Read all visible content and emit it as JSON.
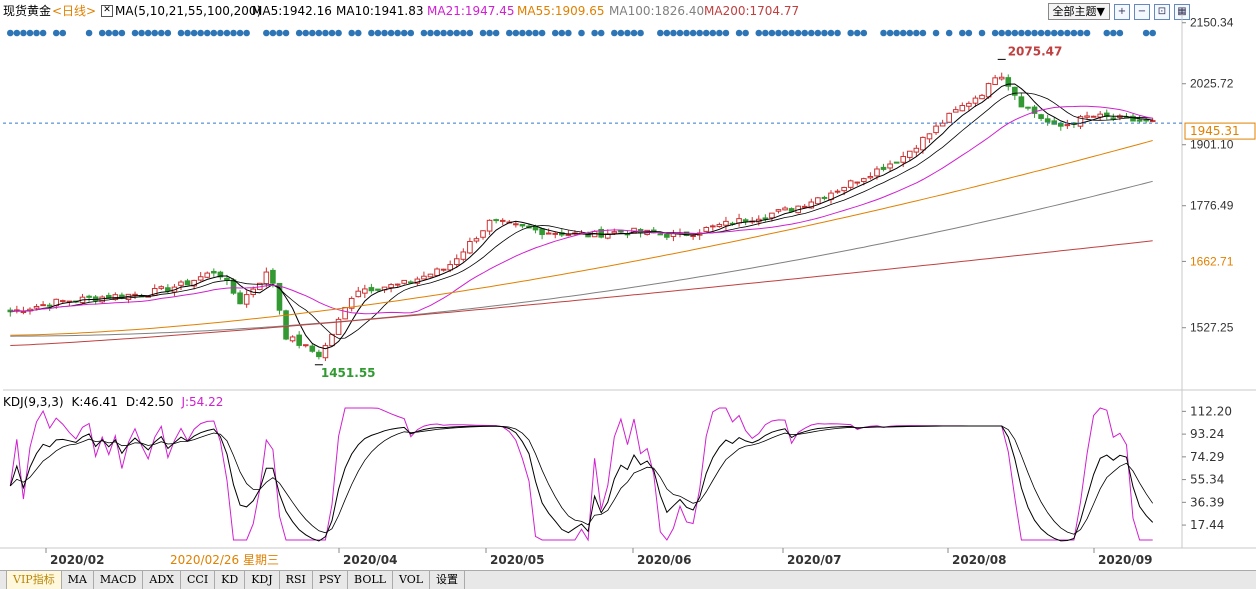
{
  "header": {
    "symbol": "现货黄金",
    "period": "<日线>",
    "ma_label": "MA(5,10,21,55,100,200)",
    "ma5": "MA5:1942.16",
    "ma10": "MA10:1941.83",
    "ma21": "MA21:1947.45",
    "ma55": "MA55:1909.65",
    "ma100": "MA100:1826.40",
    "ma200": "MA200:1704.77",
    "theme_button": "全部主题▼",
    "colors": {
      "ma5": "#000000",
      "ma10": "#000000",
      "ma21": "#d020d0",
      "ma55": "#e08000",
      "ma100": "#808080",
      "ma200": "#c04040"
    }
  },
  "toolbar_icons": [
    "zoom-in-icon",
    "zoom-out-icon",
    "expand-icon",
    "grid-icon"
  ],
  "price_axis": {
    "labels": [
      "2150.34",
      "2025.72",
      "1901.10",
      "1776.49",
      "1662.71",
      "1527.25"
    ],
    "current_price": "1945.31",
    "highlight_label": "1662.71"
  },
  "annotations": {
    "high": "2075.47",
    "low": "1451.55"
  },
  "kdj": {
    "name": "KDJ(9,3,3)",
    "k": "K:46.41",
    "d": "D:42.50",
    "j": "J:54.22",
    "axis_labels": [
      "112.20",
      "93.24",
      "74.29",
      "55.34",
      "36.39",
      "17.44"
    ]
  },
  "date_axis": {
    "labels": [
      "2020/02",
      "2020/04",
      "2020/05",
      "2020/06",
      "2020/07",
      "2020/08",
      "2020/09"
    ],
    "cursor_label": "2020/02/26 星期三"
  },
  "tabs": [
    "VIP指标",
    "MA",
    "MACD",
    "ADX",
    "CCI",
    "KD",
    "KDJ",
    "RSI",
    "PSY",
    "BOLL",
    "VOL",
    "设置"
  ],
  "chart_data": {
    "type": "line",
    "title": "现货黄金 <日线>",
    "anchors": {
      "x": [
        0,
        20,
        40,
        60,
        75,
        90,
        100,
        113,
        120,
        135,
        150,
        170,
        190,
        209,
        230,
        251,
        268,
        291,
        312
      ],
      "close": [
        1560,
        1580,
        1590,
        1598,
        1615,
        1645,
        1580,
        1645,
        1510,
        1470,
        1605,
        1615,
        1650,
        1745,
        1725,
        1716,
        1725,
        1715,
        1740
      ]
    },
    "anchors2": {
      "x": [
        340,
        360,
        388,
        410,
        425,
        430,
        440,
        455,
        470,
        500
      ],
      "close": [
        1770,
        1810,
        1875,
        1965,
        2015,
        2055,
        1985,
        1935,
        1960,
        1945
      ]
    },
    "ma55_end": 1909.65,
    "ma100_end": 1826.4,
    "ma200_end": 1704.77,
    "kdj_series": [
      "K",
      "D",
      "J"
    ],
    "ylim": [
      1400,
      2160
    ],
    "kdj_ylim": [
      5,
      115
    ]
  }
}
